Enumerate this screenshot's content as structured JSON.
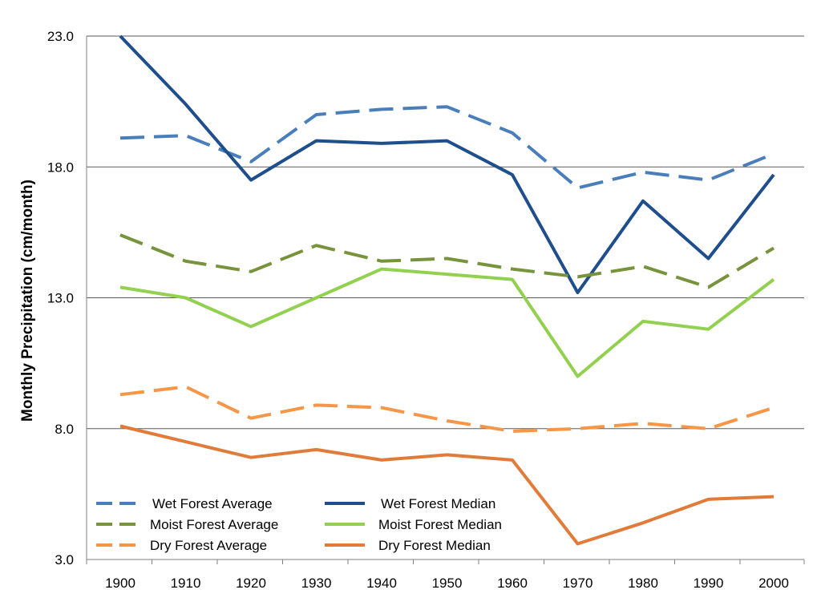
{
  "chart_data": {
    "type": "line",
    "title": "",
    "xlabel": "",
    "ylabel": "Monthly Precipitation (cm/month)",
    "x": [
      1900,
      1910,
      1920,
      1930,
      1940,
      1950,
      1960,
      1970,
      1980,
      1990,
      2000
    ],
    "x_tick_labels": [
      "1900",
      "1910",
      "1920",
      "1930",
      "1940",
      "1950",
      "1960",
      "1970",
      "1980",
      "1990",
      "2000"
    ],
    "y_tick_labels": [
      "3.0",
      "8.0",
      "13.0",
      "18.0",
      "23.0"
    ],
    "y_ticks": [
      3,
      8,
      13,
      18,
      23
    ],
    "ylim": [
      3,
      23
    ],
    "grid": true,
    "legend_position": "bottom-left",
    "series": [
      {
        "name": "Wet Forest Average",
        "style": "dashed",
        "color": "#4a7ebb",
        "values": [
          19.1,
          19.2,
          18.2,
          20.0,
          20.2,
          20.3,
          19.3,
          17.2,
          17.8,
          17.5,
          18.5
        ]
      },
      {
        "name": "Wet Forest Median",
        "style": "solid",
        "color": "#1f4e8c",
        "values": [
          23.0,
          20.4,
          17.5,
          19.0,
          18.9,
          19.0,
          17.7,
          13.2,
          16.7,
          14.5,
          17.7
        ]
      },
      {
        "name": "Moist Forest Average",
        "style": "dashed",
        "color": "#77933c",
        "values": [
          15.4,
          14.4,
          14.0,
          15.0,
          14.4,
          14.5,
          14.1,
          13.8,
          14.2,
          13.4,
          14.9
        ]
      },
      {
        "name": "Moist Forest Median",
        "style": "solid",
        "color": "#92d050",
        "values": [
          13.4,
          13.0,
          11.9,
          13.0,
          14.1,
          13.9,
          13.7,
          10.0,
          12.1,
          11.8,
          13.7
        ]
      },
      {
        "name": "Dry Forest Average",
        "style": "dashed",
        "color": "#f79646",
        "values": [
          9.3,
          9.6,
          8.4,
          8.9,
          8.8,
          8.3,
          7.9,
          8.0,
          8.2,
          8.0,
          8.8
        ]
      },
      {
        "name": "Dry Forest Median",
        "style": "solid",
        "color": "#e07b39",
        "values": [
          8.1,
          7.5,
          6.9,
          7.2,
          6.8,
          7.0,
          6.8,
          3.6,
          4.4,
          5.3,
          5.4
        ]
      }
    ]
  }
}
